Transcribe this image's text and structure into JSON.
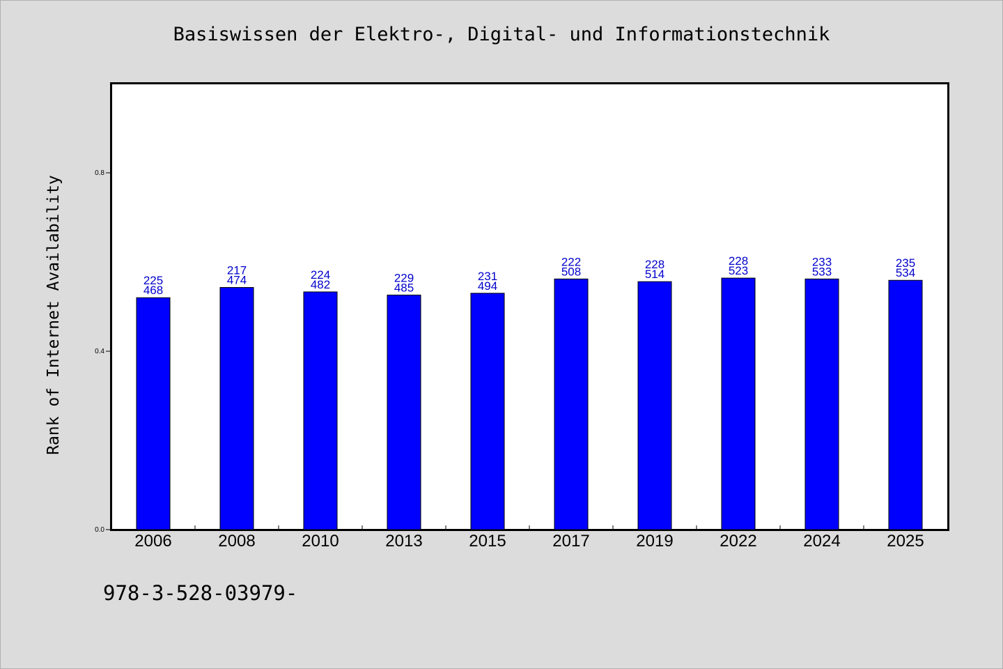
{
  "chart_data": {
    "type": "bar",
    "title": "Basiswissen der Elektro-, Digital- und Informationstechnik",
    "ylabel": "Rank of Internet Availability",
    "xlabel": "",
    "ylim": [
      0,
      1.0
    ],
    "yticks": [
      "0.0",
      "0.4",
      "0.8"
    ],
    "ytick_values": [
      0.0,
      0.4,
      0.8
    ],
    "grid": false,
    "bar_color": "#0000ff",
    "label_color": "#0000cc",
    "categories": [
      "2006",
      "2008",
      "2010",
      "2013",
      "2015",
      "2017",
      "2019",
      "2022",
      "2024",
      "2025"
    ],
    "values": [
      0.52,
      0.543,
      0.533,
      0.526,
      0.53,
      0.562,
      0.556,
      0.564,
      0.562,
      0.559
    ],
    "bar_labels": [
      [
        "225",
        "468"
      ],
      [
        "217",
        "474"
      ],
      [
        "224",
        "482"
      ],
      [
        "229",
        "485"
      ],
      [
        "231",
        "494"
      ],
      [
        "222",
        "508"
      ],
      [
        "228",
        "514"
      ],
      [
        "228",
        "523"
      ],
      [
        "233",
        "533"
      ],
      [
        "235",
        "534"
      ]
    ]
  },
  "footer": {
    "isbn": "978-3-528-03979-"
  }
}
